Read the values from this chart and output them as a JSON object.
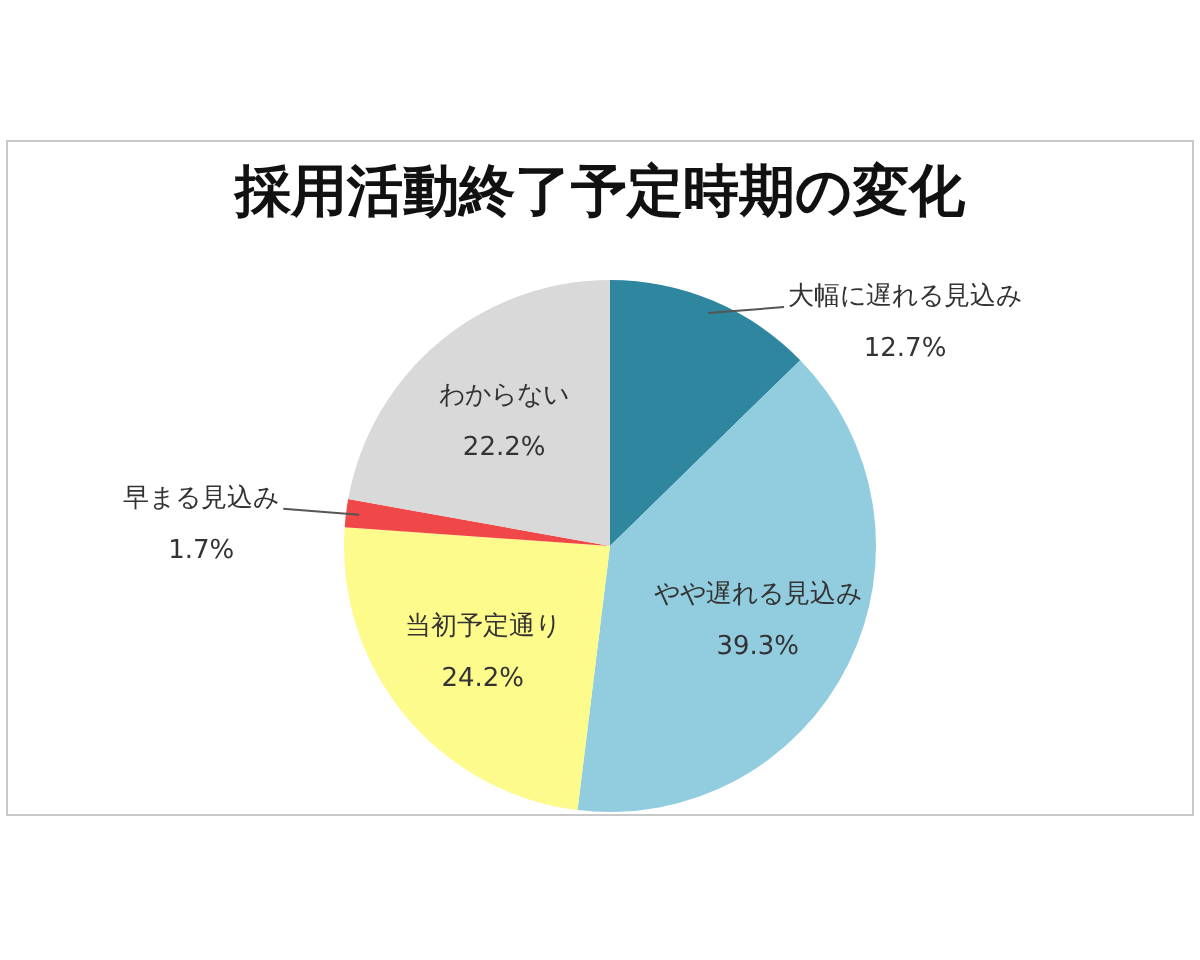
{
  "chart_data": {
    "type": "pie",
    "title": "採用活動終了予定時期の変化",
    "categories": [
      "大幅に遅れる見込み",
      "やや遅れる見込み",
      "当初予定通り",
      "早まる見込み",
      "わからない"
    ],
    "values": [
      12.7,
      39.3,
      24.2,
      1.7,
      22.2
    ],
    "value_labels": [
      "12.7%",
      "39.3%",
      "24.2%",
      "1.7%",
      "22.2%"
    ],
    "colors": [
      "#2e869f",
      "#92cddf",
      "#fdfb8c",
      "#f04848",
      "#d9d9d9"
    ]
  }
}
